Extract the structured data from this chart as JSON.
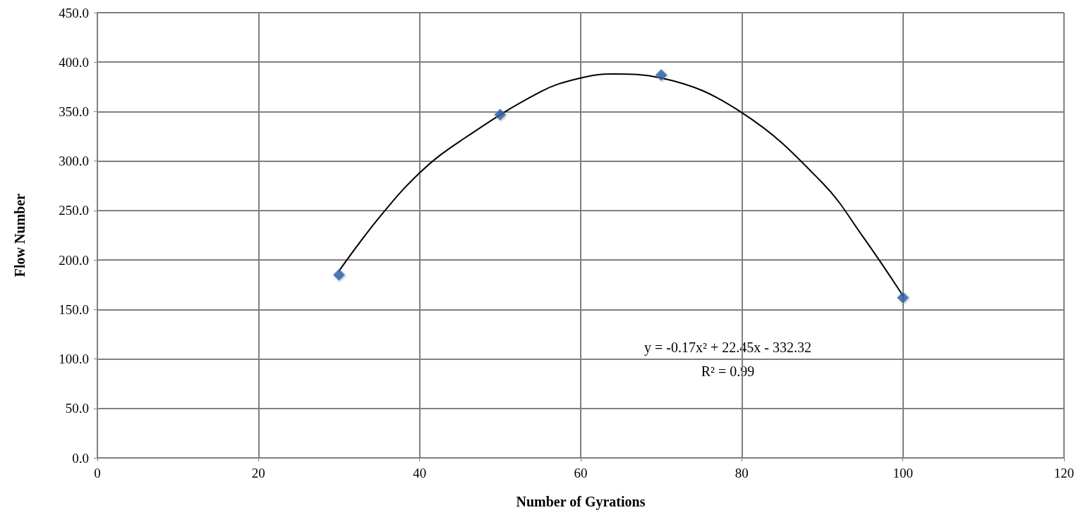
{
  "chart_data": {
    "type": "scatter",
    "xlabel": "Number of Gyrations",
    "ylabel": "Flow Number",
    "xlim": [
      0,
      120
    ],
    "xticks": [
      0,
      20,
      40,
      60,
      80,
      100,
      120
    ],
    "ylim": [
      0,
      450
    ],
    "yticks": [
      {
        "value": 0,
        "label": "0.0"
      },
      {
        "value": 50,
        "label": "50.0"
      },
      {
        "value": 100,
        "label": "100.0"
      },
      {
        "value": 150,
        "label": "150.0"
      },
      {
        "value": 200,
        "label": "200.0"
      },
      {
        "value": 250,
        "label": "250.0"
      },
      {
        "value": 300,
        "label": "300.0"
      },
      {
        "value": 350,
        "label": "350.0"
      },
      {
        "value": 400,
        "label": "400.0"
      },
      {
        "value": 450,
        "label": "450.0"
      }
    ],
    "grid": true,
    "marker": "diamond",
    "series": [
      {
        "color": "#2f62a8",
        "x": [
          30,
          50,
          70,
          100
        ],
        "values": [
          185,
          347,
          387,
          162
        ]
      },
      {
        "type": "line",
        "color": "#000000",
        "marker": "none",
        "line_style": "solid",
        "x": [
          30,
          35,
          40,
          45,
          55,
          60,
          64,
          70,
          80,
          90,
          95,
          100
        ],
        "values": [
          189,
          243,
          288,
          320,
          370,
          384,
          388,
          384,
          349,
          278,
          224,
          164
        ]
      }
    ],
    "annotations": [
      "y = -0.17x² + 22.45x - 332.32",
      "R² = 0.99"
    ]
  }
}
